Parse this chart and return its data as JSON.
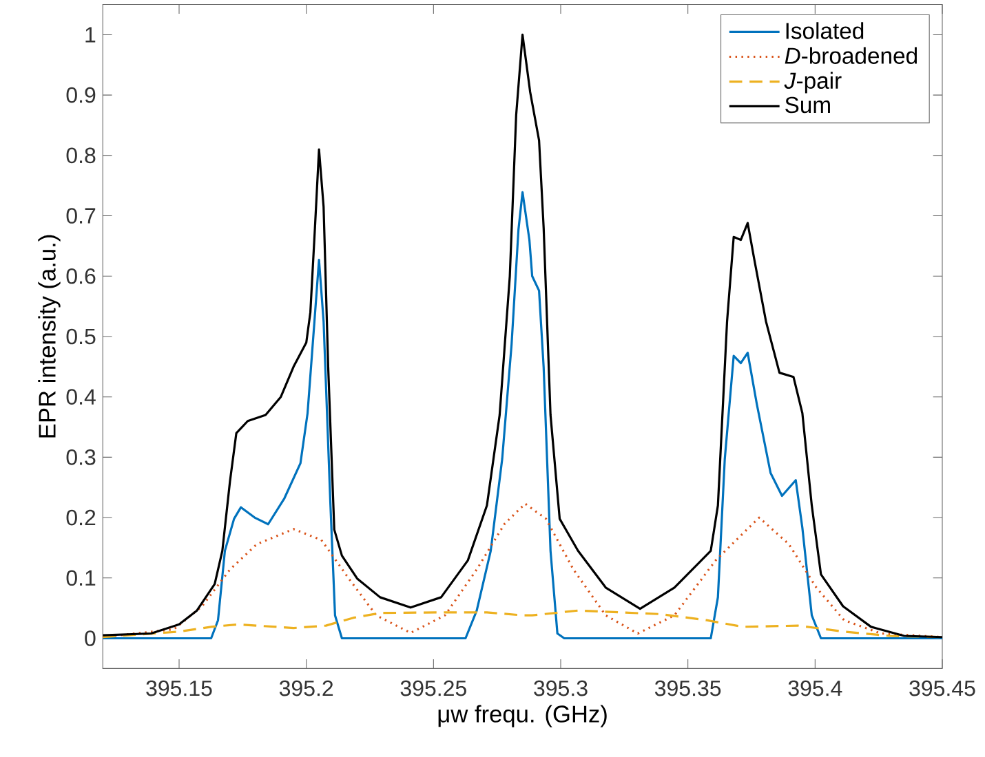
{
  "chart_data": {
    "type": "line",
    "xlabel": "μw frequ. (GHz)",
    "ylabel": "EPR intensity (a.u.)",
    "xlim": [
      395.12,
      395.45
    ],
    "ylim": [
      -0.05,
      1.05
    ],
    "xticks": [
      395.15,
      395.2,
      395.25,
      395.3,
      395.35,
      395.4,
      395.45
    ],
    "yticks": [
      0,
      0.1,
      0.2,
      0.3,
      0.4,
      0.5,
      0.6,
      0.7,
      0.8,
      0.9,
      1
    ],
    "grid": false,
    "legend": "top right",
    "marker": "none",
    "series": [
      {
        "name": "Isolated",
        "color": "#0072bd",
        "line_style": "solid",
        "x": [
          395.12,
          395.1626,
          395.1653,
          395.168,
          395.1716,
          395.1743,
          395.1797,
          395.185,
          395.1914,
          395.1977,
          395.2005,
          395.2032,
          395.205,
          395.2068,
          395.2095,
          395.2113,
          395.214,
          395.2626,
          395.267,
          395.2725,
          395.277,
          395.2807,
          395.2834,
          395.285,
          395.2877,
          395.2888,
          395.2915,
          395.2933,
          395.296,
          395.2987,
          395.3014,
          395.359,
          395.3618,
          395.3645,
          395.368,
          395.3708,
          395.3735,
          395.3771,
          395.3825,
          395.387,
          395.3924,
          395.395,
          395.3987,
          395.4023,
          395.45
        ],
        "values": [
          0,
          0,
          0.03,
          0.145,
          0.198,
          0.217,
          0.2,
          0.189,
          0.232,
          0.29,
          0.373,
          0.525,
          0.627,
          0.525,
          0.22,
          0.038,
          0,
          0,
          0.046,
          0.145,
          0.297,
          0.487,
          0.677,
          0.739,
          0.66,
          0.6,
          0.576,
          0.449,
          0.145,
          0.008,
          0,
          0,
          0.068,
          0.297,
          0.468,
          0.456,
          0.473,
          0.388,
          0.274,
          0.236,
          0.262,
          0.183,
          0.038,
          0,
          0
        ]
      },
      {
        "name": "*D*-broadened",
        "color": "#d95319",
        "line_style": "dotted",
        "x": [
          395.12,
          395.148,
          395.159,
          395.17,
          395.1806,
          395.195,
          395.2059,
          395.2167,
          395.2275,
          395.241,
          395.2545,
          395.267,
          395.278,
          395.286,
          395.2942,
          395.305,
          395.3177,
          395.3303,
          395.3447,
          395.3609,
          395.378,
          395.3897,
          395.4005,
          395.4114,
          395.4258,
          395.45
        ],
        "values": [
          0.002,
          0.015,
          0.053,
          0.114,
          0.156,
          0.181,
          0.163,
          0.099,
          0.038,
          0.009,
          0.038,
          0.114,
          0.19,
          0.223,
          0.198,
          0.114,
          0.038,
          0.008,
          0.038,
          0.129,
          0.2,
          0.156,
          0.084,
          0.03,
          0.008,
          0.002
        ]
      },
      {
        "name": "*J*-pair",
        "color": "#edb120",
        "line_style": "dashed",
        "x": [
          395.12,
          395.15,
          395.1626,
          395.1734,
          395.195,
          395.2077,
          395.2185,
          395.2293,
          395.2563,
          395.271,
          395.285,
          395.2888,
          395.3068,
          395.3393,
          395.3573,
          395.3717,
          395.3933,
          395.4114,
          395.4294,
          395.45
        ],
        "values": [
          0.002,
          0.011,
          0.019,
          0.023,
          0.017,
          0.021,
          0.034,
          0.042,
          0.043,
          0.043,
          0.038,
          0.038,
          0.046,
          0.04,
          0.03,
          0.019,
          0.021,
          0.011,
          0.004,
          0.002
        ]
      },
      {
        "name": "Sum",
        "color": "#000000",
        "line_style": "solid",
        "x": [
          395.12,
          395.139,
          395.15,
          395.157,
          395.164,
          395.167,
          395.17,
          395.1725,
          395.177,
          395.184,
          395.19,
          395.195,
          395.2,
          395.2016,
          395.2034,
          395.205,
          395.2068,
          395.2086,
          395.211,
          395.214,
          395.22,
          395.229,
          395.241,
          395.253,
          395.2635,
          395.271,
          395.276,
          395.28,
          395.2825,
          395.285,
          395.288,
          395.2915,
          395.2933,
          395.296,
          395.2996,
          395.3068,
          395.3177,
          395.3312,
          395.3447,
          395.359,
          395.3618,
          395.3654,
          395.368,
          395.3708,
          395.3735,
          395.376,
          395.3807,
          395.386,
          395.3915,
          395.395,
          395.3987,
          395.4023,
          395.411,
          395.422,
          395.435,
          395.45
        ],
        "values": [
          0.005,
          0.008,
          0.023,
          0.046,
          0.09,
          0.145,
          0.26,
          0.34,
          0.36,
          0.37,
          0.4,
          0.45,
          0.49,
          0.54,
          0.68,
          0.81,
          0.715,
          0.45,
          0.18,
          0.137,
          0.099,
          0.068,
          0.051,
          0.068,
          0.129,
          0.22,
          0.37,
          0.6,
          0.867,
          1.0,
          0.905,
          0.825,
          0.68,
          0.37,
          0.198,
          0.145,
          0.084,
          0.049,
          0.084,
          0.145,
          0.22,
          0.525,
          0.665,
          0.66,
          0.688,
          0.63,
          0.525,
          0.44,
          0.433,
          0.373,
          0.22,
          0.106,
          0.053,
          0.019,
          0.004,
          0.002
        ]
      }
    ]
  }
}
